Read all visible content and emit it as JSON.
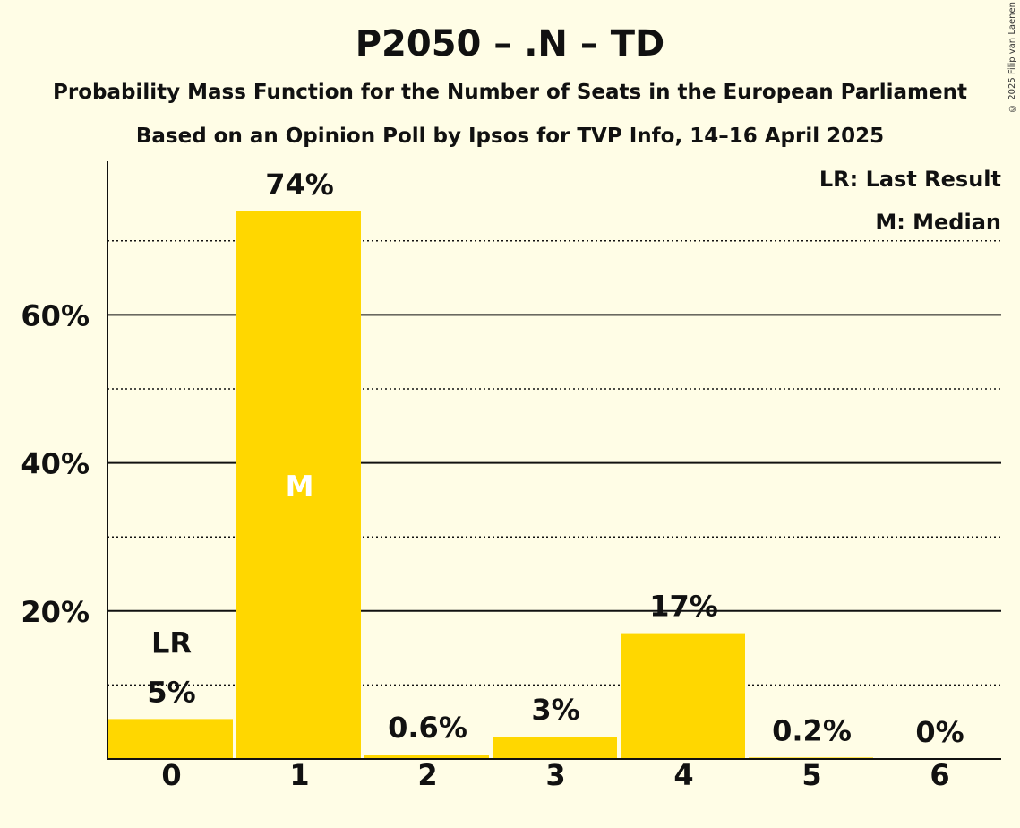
{
  "chart_data": {
    "type": "bar",
    "title": "P2050 – .N – TD",
    "subtitle": "Probability Mass Function for the Number of Seats in the European Parliament",
    "subtitle2": "Based on an Opinion Poll by Ipsos for TVP Info, 14–16 April 2025",
    "categories": [
      "0",
      "1",
      "2",
      "3",
      "4",
      "5",
      "6"
    ],
    "values": [
      5.4,
      74,
      0.6,
      3,
      17,
      0.2,
      0
    ],
    "data_labels": [
      "5%",
      "74%",
      "0.6%",
      "3%",
      "17%",
      "0.2%",
      "0%"
    ],
    "last_result_index": 0,
    "last_result_marker": "LR",
    "median_index": 1,
    "median_marker": "M",
    "legend": [
      "LR: Last Result",
      "M: Median"
    ],
    "legend_position": "top-right",
    "ylim": [
      0,
      80
    ],
    "yticks": [
      20,
      40,
      60
    ],
    "ytick_labels": [
      "20%",
      "40%",
      "60%"
    ],
    "minor_gridlines": [
      10,
      30,
      50,
      70
    ],
    "bar_color": "#FFD700",
    "background_color": "#FFFDE6"
  },
  "copyright": "© 2025 Filip van Laenen"
}
